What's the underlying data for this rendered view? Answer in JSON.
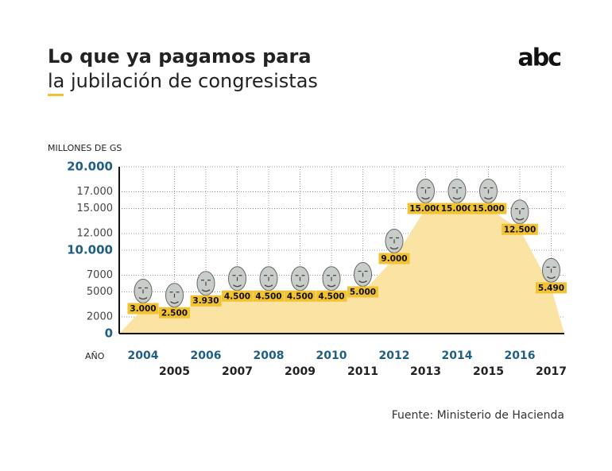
{
  "chart_data": {
    "type": "area",
    "title": "Lo que ya pagamos para",
    "subtitle": "la jubilación de congresistas",
    "logo": "abc",
    "y_axis_label": "MILLONES DE GS",
    "x_axis_label": "AÑO",
    "source": "Fuente: Ministerio de Hacienda",
    "categories": [
      "2004",
      "2005",
      "2006",
      "2007",
      "2008",
      "2009",
      "2010",
      "2011",
      "2012",
      "2013",
      "2014",
      "2015",
      "2016",
      "2017"
    ],
    "values": [
      3000,
      2500,
      3930,
      4500,
      4500,
      4500,
      4500,
      5000,
      9000,
      15000,
      15000,
      15000,
      12500,
      5490
    ],
    "value_labels": [
      "3.000",
      "2.500",
      "3.930",
      "4.500",
      "4.500",
      "4.500",
      "4.500",
      "5.000",
      "9.000",
      "15.000",
      "15.000",
      "15.000",
      "12.500",
      "5.490"
    ],
    "color": "#fbe3a4",
    "label_color": "#f2c230",
    "ylim": [
      0,
      20000
    ],
    "yticks": [
      0,
      2000,
      5000,
      7000,
      {
        "value": 10000,
        "label": "10.000"
      },
      {
        "value": 12000,
        "label": "12.000"
      },
      {
        "value": 15000,
        "label": "15.000"
      },
      {
        "value": 17000,
        "label": "17.000"
      },
      {
        "value": 20000,
        "label": "20.000"
      }
    ],
    "grid": true
  }
}
